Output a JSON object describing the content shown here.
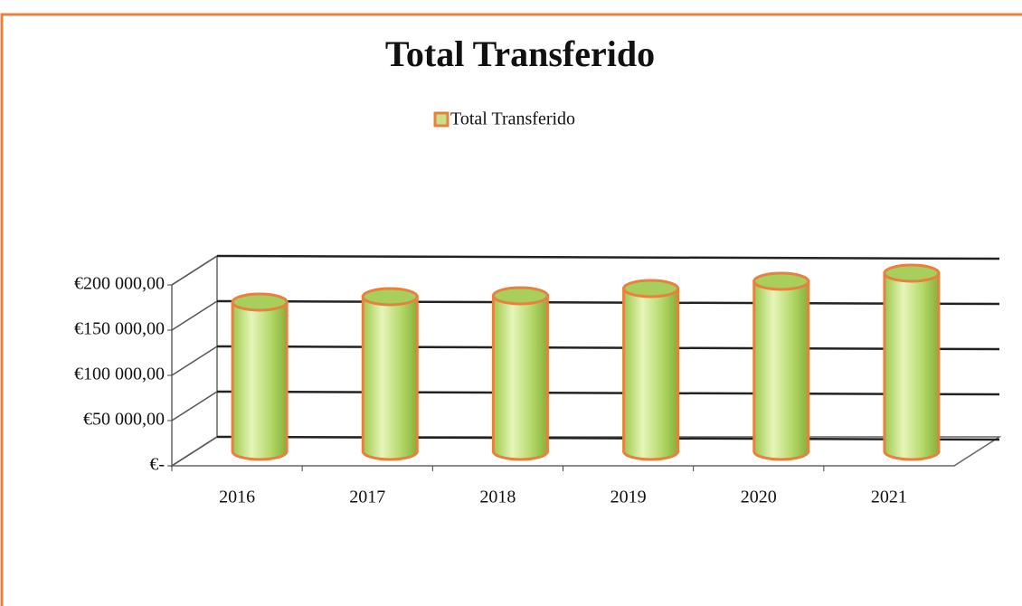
{
  "chart_data": {
    "type": "bar3d",
    "title": "Total Transferido",
    "categories": [
      "2016",
      "2017",
      "2018",
      "2019",
      "2020",
      "2021"
    ],
    "series": [
      {
        "name": "Total Transferido",
        "color": "#b5d96a",
        "values": [
          165000,
          171000,
          172000,
          180000,
          188000,
          197000
        ]
      }
    ],
    "ylim": [
      0,
      200000
    ],
    "yticks": [
      {
        "value": 0,
        "label": "€-"
      },
      {
        "value": 50000,
        "label": "€50 000,00"
      },
      {
        "value": 100000,
        "label": "€100 000,00"
      },
      {
        "value": 150000,
        "label": "€150 000,00"
      },
      {
        "value": 200000,
        "label": "€200 000,00"
      }
    ],
    "grid": true,
    "legend": "top"
  }
}
